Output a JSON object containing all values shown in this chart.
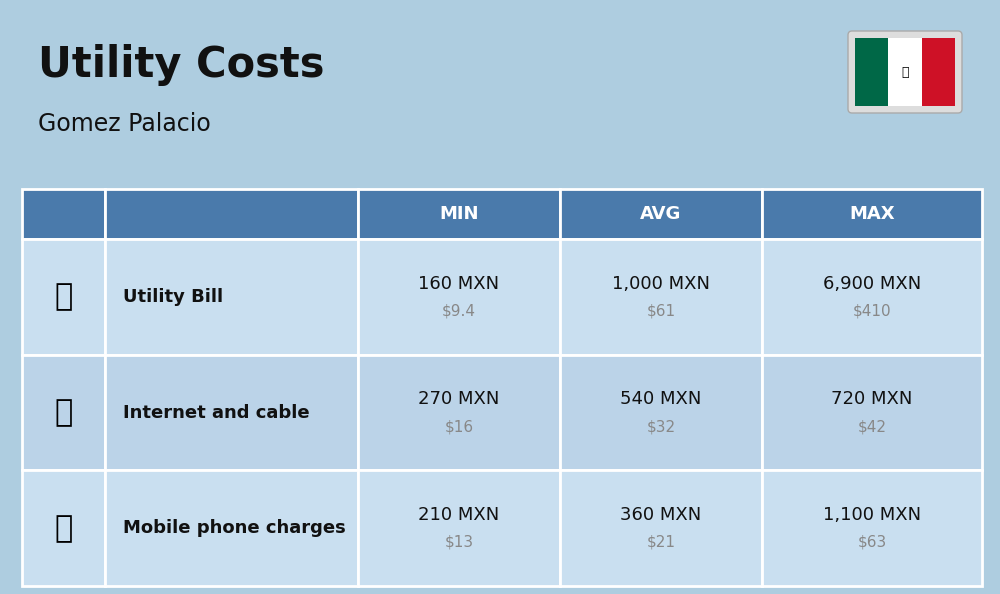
{
  "title": "Utility Costs",
  "subtitle": "Gomez Palacio",
  "bg_color": "#aecde0",
  "header_color": "#4a7aab",
  "header_text_color": "#ffffff",
  "row_color_1": "#c9dff0",
  "row_color_2": "#bbd3e8",
  "header_labels": [
    "MIN",
    "AVG",
    "MAX"
  ],
  "rows": [
    {
      "label": "Utility Bill",
      "min_mxn": "160 MXN",
      "min_usd": "$9.4",
      "avg_mxn": "1,000 MXN",
      "avg_usd": "$61",
      "max_mxn": "6,900 MXN",
      "max_usd": "$410"
    },
    {
      "label": "Internet and cable",
      "min_mxn": "270 MXN",
      "min_usd": "$16",
      "avg_mxn": "540 MXN",
      "avg_usd": "$32",
      "max_mxn": "720 MXN",
      "max_usd": "$42"
    },
    {
      "label": "Mobile phone charges",
      "min_mxn": "210 MXN",
      "min_usd": "$13",
      "avg_mxn": "360 MXN",
      "avg_usd": "$21",
      "max_mxn": "1,100 MXN",
      "max_usd": "$63"
    }
  ],
  "title_fontsize": 30,
  "subtitle_fontsize": 17,
  "header_fontsize": 13,
  "label_fontsize": 13,
  "value_fontsize": 13,
  "usd_fontsize": 11,
  "usd_color": "#888888",
  "flag_green": "#006847",
  "flag_white": "#FFFFFF",
  "flag_red": "#CE1126"
}
